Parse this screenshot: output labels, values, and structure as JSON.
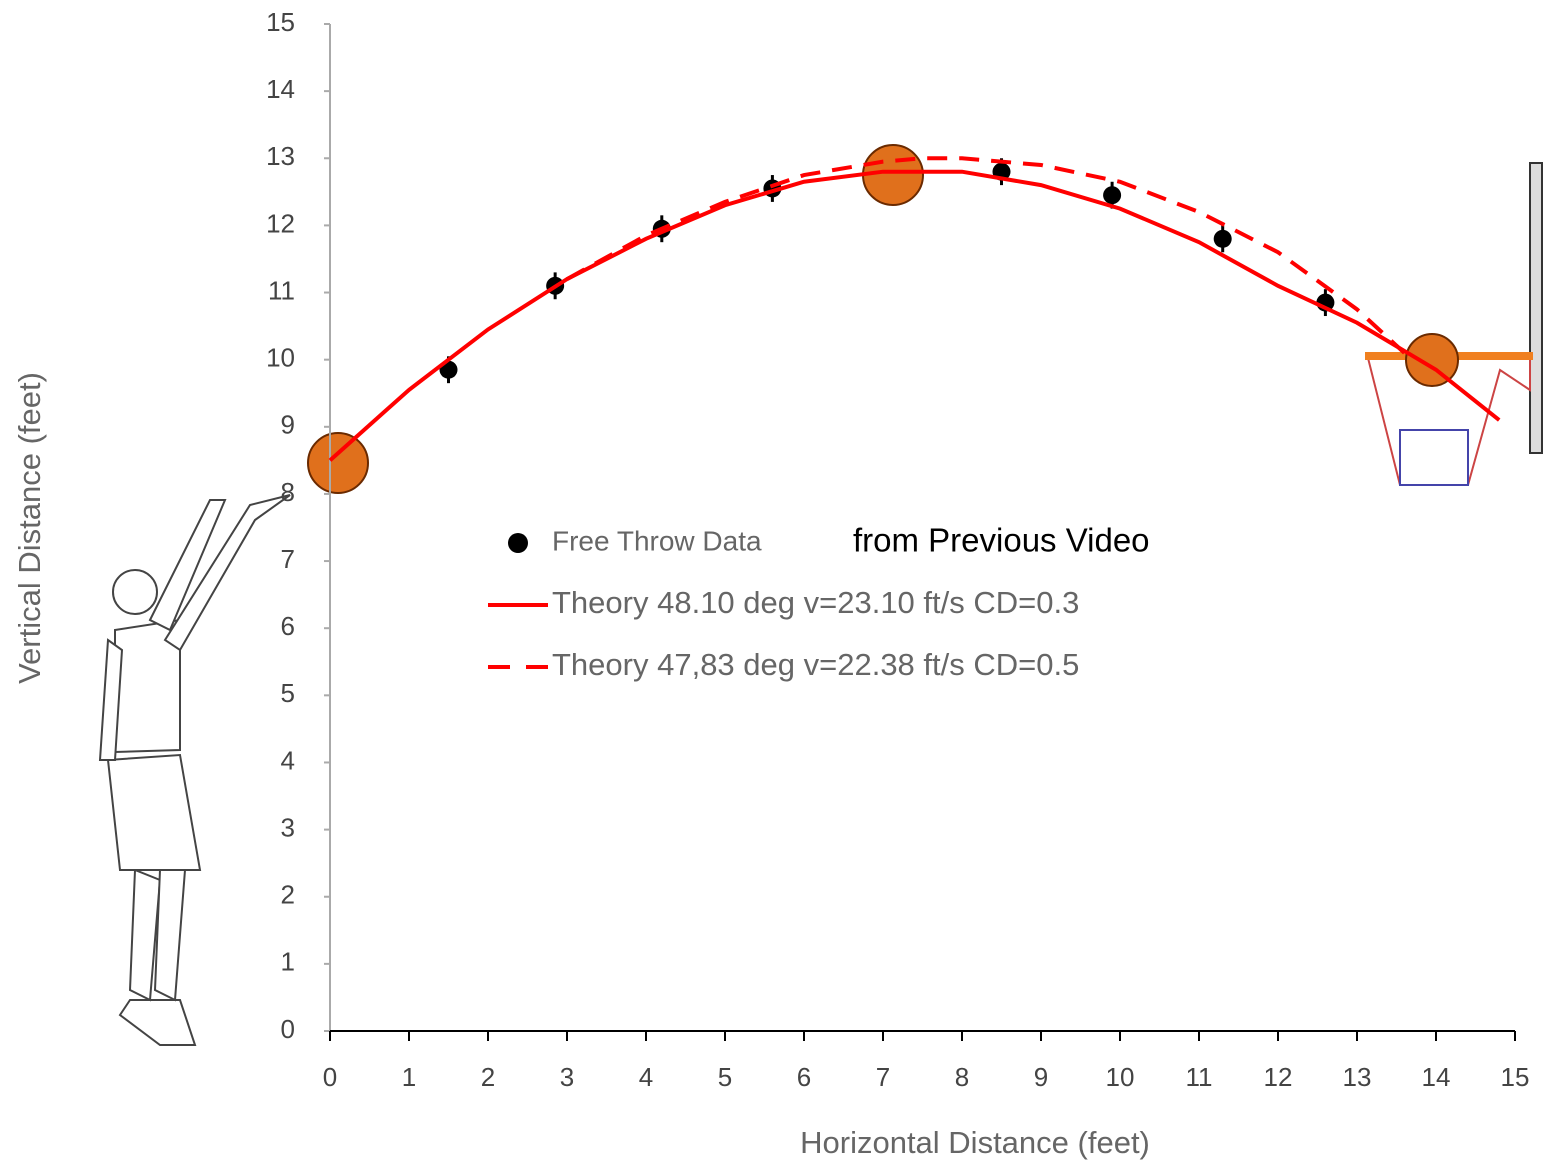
{
  "chart_data": {
    "type": "scatter",
    "xlabel": "Horizontal Distance (feet)",
    "ylabel": "Vertical Distance (feet)",
    "xlim": [
      0,
      15
    ],
    "ylim": [
      0,
      15
    ],
    "xticks": [
      0,
      1,
      2,
      3,
      4,
      5,
      6,
      7,
      8,
      9,
      10,
      11,
      12,
      13,
      14,
      15
    ],
    "yticks": [
      0,
      1,
      2,
      3,
      4,
      5,
      6,
      7,
      8,
      9,
      10,
      11,
      12,
      13,
      14,
      15
    ],
    "legend_note": "from Previous Video",
    "series": [
      {
        "name": "Free Throw Data",
        "color": "#000000",
        "mode": "points",
        "x": [
          1.5,
          2.85,
          4.2,
          5.6,
          8.5,
          9.9,
          11.3,
          12.6
        ],
        "values": [
          9.85,
          11.1,
          11.95,
          12.55,
          12.8,
          12.45,
          11.8,
          10.85
        ],
        "errors": [
          0.2,
          0.2,
          0.2,
          0.2,
          0.2,
          0.2,
          0.2,
          0.2
        ]
      },
      {
        "name": "Theory 48.10 deg v=23.10 ft/s CD=0.3",
        "color": "#ff0000",
        "mode": "solid",
        "x": [
          0,
          1,
          2,
          3,
          4,
          5,
          6,
          7,
          8,
          9,
          10,
          11,
          12,
          13,
          14,
          14.8
        ],
        "values": [
          8.5,
          9.55,
          10.45,
          11.2,
          11.8,
          12.3,
          12.65,
          12.8,
          12.8,
          12.6,
          12.25,
          11.75,
          11.1,
          10.55,
          9.85,
          9.1
        ]
      },
      {
        "name": "Theory 47,83 deg v=22.38 ft/s CD=0.5",
        "color": "#ff0000",
        "mode": "dashed",
        "x": [
          3,
          4,
          5,
          6,
          7,
          7.5,
          8,
          9,
          10,
          11,
          12,
          13,
          13.6
        ],
        "values": [
          11.2,
          11.85,
          12.35,
          12.75,
          12.95,
          13.0,
          13.0,
          12.9,
          12.65,
          12.2,
          11.6,
          10.75,
          10.1
        ]
      }
    ]
  }
}
